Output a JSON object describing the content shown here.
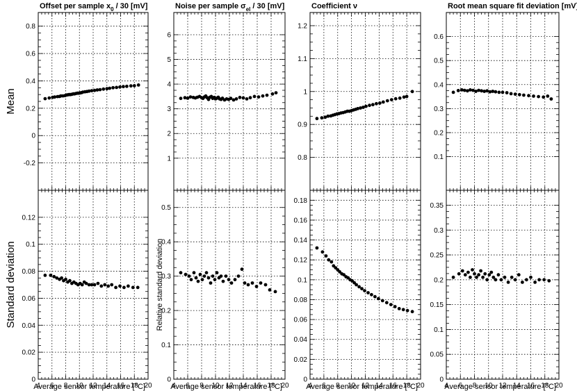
{
  "figure": {
    "row_labels": [
      "Mean",
      "Standard deviation"
    ],
    "xlabel": "Average sensor temperature [°C]",
    "x_ticks": [
      4,
      6,
      8,
      10,
      12,
      14,
      16,
      18,
      20
    ],
    "xlim": [
      4,
      20
    ]
  },
  "chart_data": [
    {
      "id": "offset_mean",
      "type": "scatter",
      "title_main": "Offset per sample x",
      "title_sub": "0",
      "title_tail": " / 30  [mV]",
      "ylabel": "Mean",
      "ylim": [
        -0.4,
        0.9
      ],
      "y_ticks": [
        -0.2,
        0,
        0.2,
        0.4,
        0.6,
        0.8
      ],
      "y_ticklabels": [
        "-0.2",
        "0",
        "0.2",
        "0.4",
        "0.6",
        "0.8"
      ],
      "grid": true,
      "points": [
        [
          5.0,
          0.27
        ],
        [
          5.6,
          0.275
        ],
        [
          6.1,
          0.28
        ],
        [
          6.4,
          0.282
        ],
        [
          6.8,
          0.285
        ],
        [
          7.1,
          0.286
        ],
        [
          7.3,
          0.29
        ],
        [
          7.6,
          0.29
        ],
        [
          7.9,
          0.292
        ],
        [
          8.1,
          0.296
        ],
        [
          8.3,
          0.298
        ],
        [
          8.5,
          0.3
        ],
        [
          8.7,
          0.3
        ],
        [
          8.9,
          0.302
        ],
        [
          9.1,
          0.305
        ],
        [
          9.3,
          0.305
        ],
        [
          9.5,
          0.308
        ],
        [
          9.7,
          0.31
        ],
        [
          9.9,
          0.31
        ],
        [
          10.1,
          0.312
        ],
        [
          10.3,
          0.314
        ],
        [
          10.5,
          0.318
        ],
        [
          10.8,
          0.32
        ],
        [
          11.1,
          0.322
        ],
        [
          11.4,
          0.325
        ],
        [
          11.8,
          0.328
        ],
        [
          12.2,
          0.33
        ],
        [
          12.6,
          0.334
        ],
        [
          13.0,
          0.336
        ],
        [
          13.5,
          0.34
        ],
        [
          14.0,
          0.343
        ],
        [
          14.4,
          0.346
        ],
        [
          14.9,
          0.35
        ],
        [
          15.4,
          0.352
        ],
        [
          15.9,
          0.355
        ],
        [
          16.4,
          0.358
        ],
        [
          16.9,
          0.36
        ],
        [
          17.5,
          0.363
        ],
        [
          18.0,
          0.365
        ],
        [
          18.6,
          0.37
        ]
      ]
    },
    {
      "id": "noise_mean",
      "type": "scatter",
      "title_main": "Noise per sample σ",
      "title_sub": "el",
      "title_tail": " / 30  [mV]",
      "ylabel": "",
      "ylim": [
        -0.3,
        6.9
      ],
      "y_ticks": [
        1,
        2,
        3,
        4,
        5,
        6
      ],
      "y_ticklabels": [
        "1",
        "2",
        "3",
        "4",
        "5",
        "6"
      ],
      "grid": true,
      "points": [
        [
          5.0,
          3.42
        ],
        [
          5.6,
          3.45
        ],
        [
          6.0,
          3.43
        ],
        [
          6.4,
          3.48
        ],
        [
          6.8,
          3.46
        ],
        [
          7.1,
          3.44
        ],
        [
          7.4,
          3.47
        ],
        [
          7.7,
          3.5
        ],
        [
          8.0,
          3.45
        ],
        [
          8.2,
          3.42
        ],
        [
          8.4,
          3.48
        ],
        [
          8.6,
          3.52
        ],
        [
          8.8,
          3.45
        ],
        [
          9.0,
          3.38
        ],
        [
          9.2,
          3.47
        ],
        [
          9.4,
          3.5
        ],
        [
          9.6,
          3.42
        ],
        [
          9.8,
          3.46
        ],
        [
          10.0,
          3.4
        ],
        [
          10.2,
          3.43
        ],
        [
          10.4,
          3.47
        ],
        [
          10.6,
          3.4
        ],
        [
          10.8,
          3.38
        ],
        [
          11.0,
          3.43
        ],
        [
          11.3,
          3.36
        ],
        [
          11.6,
          3.4
        ],
        [
          11.9,
          3.38
        ],
        [
          12.2,
          3.42
        ],
        [
          12.6,
          3.36
        ],
        [
          13.0,
          3.4
        ],
        [
          13.5,
          3.46
        ],
        [
          14.0,
          3.44
        ],
        [
          14.5,
          3.4
        ],
        [
          15.0,
          3.45
        ],
        [
          15.6,
          3.5
        ],
        [
          16.2,
          3.48
        ],
        [
          16.8,
          3.52
        ],
        [
          17.4,
          3.55
        ],
        [
          18.2,
          3.6
        ],
        [
          18.7,
          3.65
        ]
      ]
    },
    {
      "id": "coef_mean",
      "type": "scatter",
      "title_main": "Coefficient ν",
      "title_sub": "",
      "title_tail": "",
      "ylabel": "",
      "ylim": [
        0.7,
        1.24
      ],
      "y_ticks": [
        0.8,
        0.9,
        1.0,
        1.1,
        1.2
      ],
      "y_ticklabels": [
        "0.8",
        "0.9",
        "1",
        "1.1",
        "1.2"
      ],
      "grid": true,
      "points": [
        [
          5.0,
          0.918
        ],
        [
          5.7,
          0.92
        ],
        [
          6.2,
          0.922
        ],
        [
          6.6,
          0.925
        ],
        [
          7.0,
          0.926
        ],
        [
          7.3,
          0.928
        ],
        [
          7.6,
          0.93
        ],
        [
          7.9,
          0.932
        ],
        [
          8.2,
          0.933
        ],
        [
          8.5,
          0.935
        ],
        [
          8.8,
          0.936
        ],
        [
          9.1,
          0.938
        ],
        [
          9.4,
          0.94
        ],
        [
          9.7,
          0.94
        ],
        [
          10.0,
          0.942
        ],
        [
          10.3,
          0.944
        ],
        [
          10.6,
          0.946
        ],
        [
          10.9,
          0.948
        ],
        [
          11.3,
          0.95
        ],
        [
          11.7,
          0.952
        ],
        [
          12.1,
          0.955
        ],
        [
          12.6,
          0.958
        ],
        [
          13.1,
          0.96
        ],
        [
          13.6,
          0.963
        ],
        [
          14.1,
          0.965
        ],
        [
          14.6,
          0.968
        ],
        [
          15.2,
          0.972
        ],
        [
          15.8,
          0.975
        ],
        [
          16.4,
          0.978
        ],
        [
          17.0,
          0.98
        ],
        [
          17.6,
          0.983
        ],
        [
          18.0,
          0.985
        ],
        [
          18.8,
          1.0
        ]
      ]
    },
    {
      "id": "rms_mean",
      "type": "scatter",
      "title_main": "Root mean square fit deviation  [mV]",
      "title_sub": "",
      "title_tail": "",
      "ylabel": "",
      "ylim": [
        -0.04,
        0.7
      ],
      "y_ticks": [
        0.1,
        0.2,
        0.3,
        0.4,
        0.5,
        0.6
      ],
      "y_ticklabels": [
        "0.1",
        "0.2",
        "0.3",
        "0.4",
        "0.5",
        "0.6"
      ],
      "grid": true,
      "points": [
        [
          5.0,
          0.368
        ],
        [
          5.7,
          0.375
        ],
        [
          6.2,
          0.378
        ],
        [
          6.6,
          0.376
        ],
        [
          7.0,
          0.374
        ],
        [
          7.4,
          0.378
        ],
        [
          7.8,
          0.376
        ],
        [
          8.2,
          0.372
        ],
        [
          8.6,
          0.376
        ],
        [
          9.0,
          0.374
        ],
        [
          9.4,
          0.372
        ],
        [
          9.8,
          0.374
        ],
        [
          10.2,
          0.37
        ],
        [
          10.6,
          0.372
        ],
        [
          11.0,
          0.37
        ],
        [
          11.5,
          0.368
        ],
        [
          12.0,
          0.368
        ],
        [
          12.6,
          0.366
        ],
        [
          13.2,
          0.362
        ],
        [
          13.8,
          0.36
        ],
        [
          14.4,
          0.358
        ],
        [
          15.0,
          0.356
        ],
        [
          15.7,
          0.354
        ],
        [
          16.4,
          0.352
        ],
        [
          17.1,
          0.35
        ],
        [
          17.8,
          0.348
        ],
        [
          18.4,
          0.352
        ],
        [
          18.9,
          0.34
        ]
      ]
    },
    {
      "id": "offset_sd",
      "type": "scatter",
      "title_main": "",
      "title_sub": "",
      "title_tail": "",
      "ylabel": "Standard deviation",
      "ylim": [
        0,
        0.14
      ],
      "y_ticks": [
        0,
        0.02,
        0.04,
        0.06,
        0.08,
        0.1,
        0.12
      ],
      "y_ticklabels": [
        "0",
        "0.02",
        "0.04",
        "0.06",
        "0.08",
        "0.1",
        "0.12"
      ],
      "grid": true,
      "points": [
        [
          5.0,
          0.077
        ],
        [
          5.8,
          0.077
        ],
        [
          6.3,
          0.076
        ],
        [
          6.7,
          0.075
        ],
        [
          7.1,
          0.074
        ],
        [
          7.4,
          0.075
        ],
        [
          7.7,
          0.073
        ],
        [
          8.0,
          0.074
        ],
        [
          8.3,
          0.072
        ],
        [
          8.6,
          0.073
        ],
        [
          8.9,
          0.071
        ],
        [
          9.2,
          0.072
        ],
        [
          9.5,
          0.071
        ],
        [
          9.8,
          0.07
        ],
        [
          10.1,
          0.071
        ],
        [
          10.4,
          0.07
        ],
        [
          10.7,
          0.072
        ],
        [
          11.0,
          0.071
        ],
        [
          11.4,
          0.07
        ],
        [
          11.8,
          0.07
        ],
        [
          12.2,
          0.07
        ],
        [
          12.7,
          0.071
        ],
        [
          13.2,
          0.069
        ],
        [
          13.7,
          0.07
        ],
        [
          14.2,
          0.069
        ],
        [
          14.7,
          0.07
        ],
        [
          15.3,
          0.068
        ],
        [
          15.9,
          0.069
        ],
        [
          16.5,
          0.068
        ],
        [
          17.1,
          0.069
        ],
        [
          17.8,
          0.068
        ],
        [
          18.5,
          0.068
        ]
      ]
    },
    {
      "id": "noise_sd",
      "type": "scatter",
      "title_main": "",
      "title_sub": "",
      "title_tail": "",
      "ylabel": "Relative standard deviation",
      "ylim": [
        0,
        0.55
      ],
      "y_ticks": [
        0,
        0.1,
        0.2,
        0.3,
        0.4,
        0.5
      ],
      "y_ticklabels": [
        "0",
        "0.1",
        "0.2",
        "0.3",
        "0.4",
        "0.5"
      ],
      "grid": true,
      "points": [
        [
          5.0,
          0.31
        ],
        [
          5.7,
          0.305
        ],
        [
          6.2,
          0.3
        ],
        [
          6.5,
          0.29
        ],
        [
          6.9,
          0.31
        ],
        [
          7.2,
          0.295
        ],
        [
          7.5,
          0.285
        ],
        [
          7.8,
          0.305
        ],
        [
          8.1,
          0.29
        ],
        [
          8.4,
          0.3
        ],
        [
          8.7,
          0.31
        ],
        [
          9.0,
          0.295
        ],
        [
          9.3,
          0.28
        ],
        [
          9.6,
          0.3
        ],
        [
          9.9,
          0.29
        ],
        [
          10.2,
          0.31
        ],
        [
          10.5,
          0.295
        ],
        [
          10.8,
          0.3
        ],
        [
          11.1,
          0.285
        ],
        [
          11.5,
          0.3
        ],
        [
          11.9,
          0.29
        ],
        [
          12.3,
          0.28
        ],
        [
          12.8,
          0.29
        ],
        [
          13.3,
          0.3
        ],
        [
          13.8,
          0.32
        ],
        [
          14.2,
          0.28
        ],
        [
          14.7,
          0.275
        ],
        [
          15.3,
          0.28
        ],
        [
          15.9,
          0.27
        ],
        [
          16.5,
          0.28
        ],
        [
          17.2,
          0.275
        ],
        [
          17.8,
          0.26
        ],
        [
          18.6,
          0.255
        ]
      ]
    },
    {
      "id": "coef_sd",
      "type": "scatter",
      "title_main": "",
      "title_sub": "",
      "title_tail": "",
      "ylabel": "",
      "ylim": [
        0,
        0.19
      ],
      "y_ticks": [
        0,
        0.02,
        0.04,
        0.06,
        0.08,
        0.1,
        0.12,
        0.14,
        0.16,
        0.18
      ],
      "y_ticklabels": [
        "0",
        "0.02",
        "0.04",
        "0.06",
        "0.08",
        "0.1",
        "0.12",
        "0.14",
        "0.16",
        "0.18"
      ],
      "grid": true,
      "points": [
        [
          5.0,
          0.132
        ],
        [
          5.8,
          0.128
        ],
        [
          6.3,
          0.124
        ],
        [
          6.7,
          0.12
        ],
        [
          7.1,
          0.118
        ],
        [
          7.4,
          0.114
        ],
        [
          7.7,
          0.112
        ],
        [
          8.0,
          0.11
        ],
        [
          8.3,
          0.108
        ],
        [
          8.6,
          0.106
        ],
        [
          8.9,
          0.105
        ],
        [
          9.2,
          0.103
        ],
        [
          9.5,
          0.102
        ],
        [
          9.8,
          0.1
        ],
        [
          10.1,
          0.099
        ],
        [
          10.4,
          0.097
        ],
        [
          10.7,
          0.095
        ],
        [
          11.1,
          0.093
        ],
        [
          11.5,
          0.091
        ],
        [
          11.9,
          0.089
        ],
        [
          12.4,
          0.087
        ],
        [
          12.9,
          0.085
        ],
        [
          13.4,
          0.083
        ],
        [
          13.9,
          0.081
        ],
        [
          14.5,
          0.079
        ],
        [
          15.1,
          0.077
        ],
        [
          15.7,
          0.075
        ],
        [
          16.3,
          0.073
        ],
        [
          16.9,
          0.071
        ],
        [
          17.5,
          0.07
        ],
        [
          18.1,
          0.069
        ],
        [
          18.8,
          0.068
        ]
      ]
    },
    {
      "id": "rms_sd",
      "type": "scatter",
      "title_main": "",
      "title_sub": "",
      "title_tail": "",
      "ylabel": "",
      "ylim": [
        0,
        0.38
      ],
      "y_ticks": [
        0,
        0.05,
        0.1,
        0.15,
        0.2,
        0.25,
        0.3,
        0.35
      ],
      "y_ticklabels": [
        "0",
        "0.05",
        "0.1",
        "0.15",
        "0.2",
        "0.25",
        "0.3",
        "0.35"
      ],
      "grid": true,
      "points": [
        [
          5.0,
          0.205
        ],
        [
          5.8,
          0.212
        ],
        [
          6.3,
          0.218
        ],
        [
          6.7,
          0.21
        ],
        [
          7.1,
          0.215
        ],
        [
          7.4,
          0.205
        ],
        [
          7.7,
          0.22
        ],
        [
          8.0,
          0.212
        ],
        [
          8.3,
          0.205
        ],
        [
          8.6,
          0.21
        ],
        [
          8.9,
          0.218
        ],
        [
          9.2,
          0.205
        ],
        [
          9.5,
          0.212
        ],
        [
          9.8,
          0.2
        ],
        [
          10.1,
          0.21
        ],
        [
          10.4,
          0.215
        ],
        [
          10.7,
          0.205
        ],
        [
          11.0,
          0.2
        ],
        [
          11.4,
          0.21
        ],
        [
          11.8,
          0.2
        ],
        [
          12.3,
          0.205
        ],
        [
          12.8,
          0.195
        ],
        [
          13.3,
          0.205
        ],
        [
          13.8,
          0.2
        ],
        [
          14.3,
          0.21
        ],
        [
          14.8,
          0.195
        ],
        [
          15.4,
          0.2
        ],
        [
          16.0,
          0.205
        ],
        [
          16.6,
          0.195
        ],
        [
          17.2,
          0.2
        ],
        [
          17.9,
          0.2
        ],
        [
          18.6,
          0.198
        ]
      ]
    }
  ]
}
